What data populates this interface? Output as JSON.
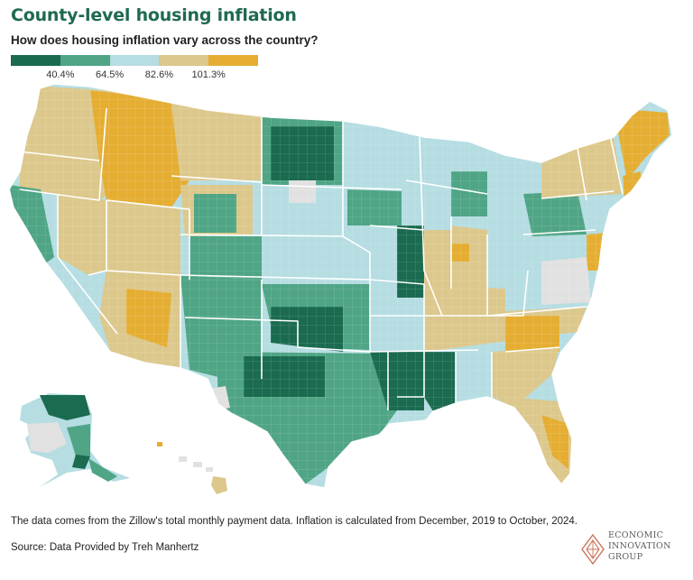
{
  "title": "County-level housing inflation",
  "subtitle": "How does housing inflation vary across the country?",
  "legend": {
    "colors": [
      "#1a6b4f",
      "#4fa585",
      "#b5dde2",
      "#dcc88c",
      "#e5ae33"
    ],
    "ticks": [
      "40.4%",
      "64.5%",
      "82.6%",
      "101.3%"
    ],
    "no_data_color": "#e1e1e1"
  },
  "footnote": "The data comes from the Zillow's total monthly payment data. Inflation is calculated from December, 2019 to October, 2024.",
  "source": "Source: Data Provided by Treh Manhertz",
  "logo": {
    "line1": "ECONOMIC",
    "line2": "INNOVATION",
    "line3": "GROUP"
  }
}
